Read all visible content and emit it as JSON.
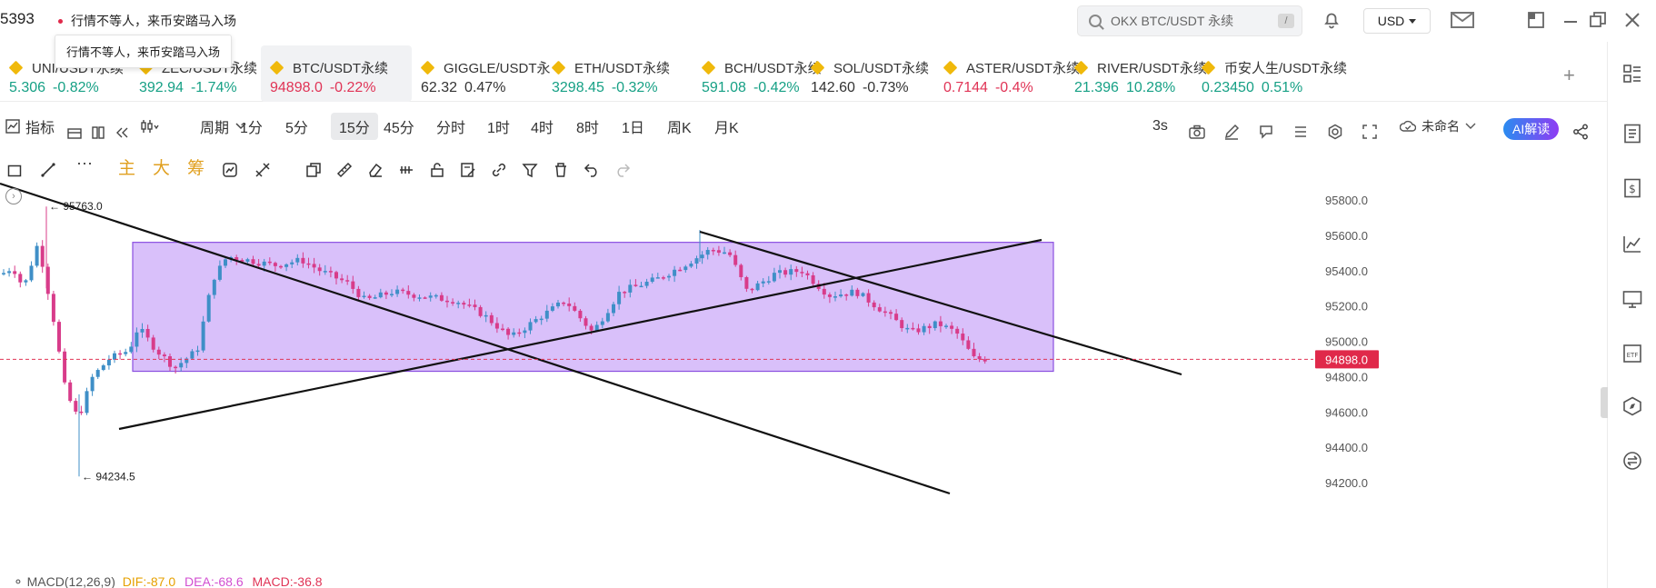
{
  "topbar": {
    "partial_number": "5393",
    "notice": "行情不等人，来币安踏马入场",
    "tooltip": "行情不等人，来币安踏马入场",
    "search_placeholder": "OKX BTC/USDT 永续",
    "search_shortcut": "/",
    "currency": "USD"
  },
  "tickers": [
    {
      "name": "UNI/USDT永续",
      "price": "5.306",
      "change": "-0.82%",
      "dir": "dn_price_up"
    },
    {
      "name": "ZEC/USDT永续",
      "price": "392.94",
      "change": "-1.74%"
    },
    {
      "name": "BTC/USDT永续",
      "price": "94898.0",
      "change": "-0.22%",
      "active": true
    },
    {
      "name": "GIGGLE/USDT永",
      "price": "62.32",
      "change": "0.47%"
    },
    {
      "name": "ETH/USDT永续",
      "price": "3298.45",
      "change": "-0.32%"
    },
    {
      "name": "BCH/USDT永续",
      "price": "591.08",
      "change": "-0.42%"
    },
    {
      "name": "SOL/USDT永续",
      "price": "142.60",
      "change": "-0.73%"
    },
    {
      "name": "ASTER/USDT永续",
      "price": "0.7144",
      "change": "-0.4%"
    },
    {
      "name": "RIVER/USDT永续",
      "price": "21.396",
      "change": "10.28%"
    },
    {
      "name": "币安人生/USDT永续",
      "price": "0.23450",
      "change": "0.51%"
    }
  ],
  "toolbar": {
    "indicators": "指标",
    "period": "周期",
    "intervals": [
      "1分",
      "5分",
      "15分",
      "45分",
      "分时",
      "1时",
      "4时",
      "8时",
      "1日",
      "周K",
      "月K"
    ],
    "selected_interval": "15分",
    "refresh": "3s",
    "layout_name": "未命名",
    "ai_button": "AI解读"
  },
  "drawbar": {
    "main": "主",
    "big": "大",
    "chips": "筹"
  },
  "chart_data": {
    "type": "candlestick",
    "y_axis_labels": [
      "95800.0",
      "95600.0",
      "95400.0",
      "95200.0",
      "95000.0",
      "94800.0",
      "94600.0",
      "94400.0",
      "94200.0"
    ],
    "current_price": "94898.0",
    "high_label": "95763.0",
    "low_label": "94234.5",
    "high_value": 95763.0,
    "low_value": 94234.5,
    "ylim": [
      94200,
      95800
    ]
  },
  "macd": {
    "label": "MACD(12,26,9)",
    "dif": "DIF:-87.0",
    "dea": "DEA:-68.6",
    "macd": "MACD:-36.8"
  },
  "colors": {
    "up": "#16a085",
    "down": "#e03456",
    "box": "#b98cf5",
    "accent": "#f0b90b"
  }
}
